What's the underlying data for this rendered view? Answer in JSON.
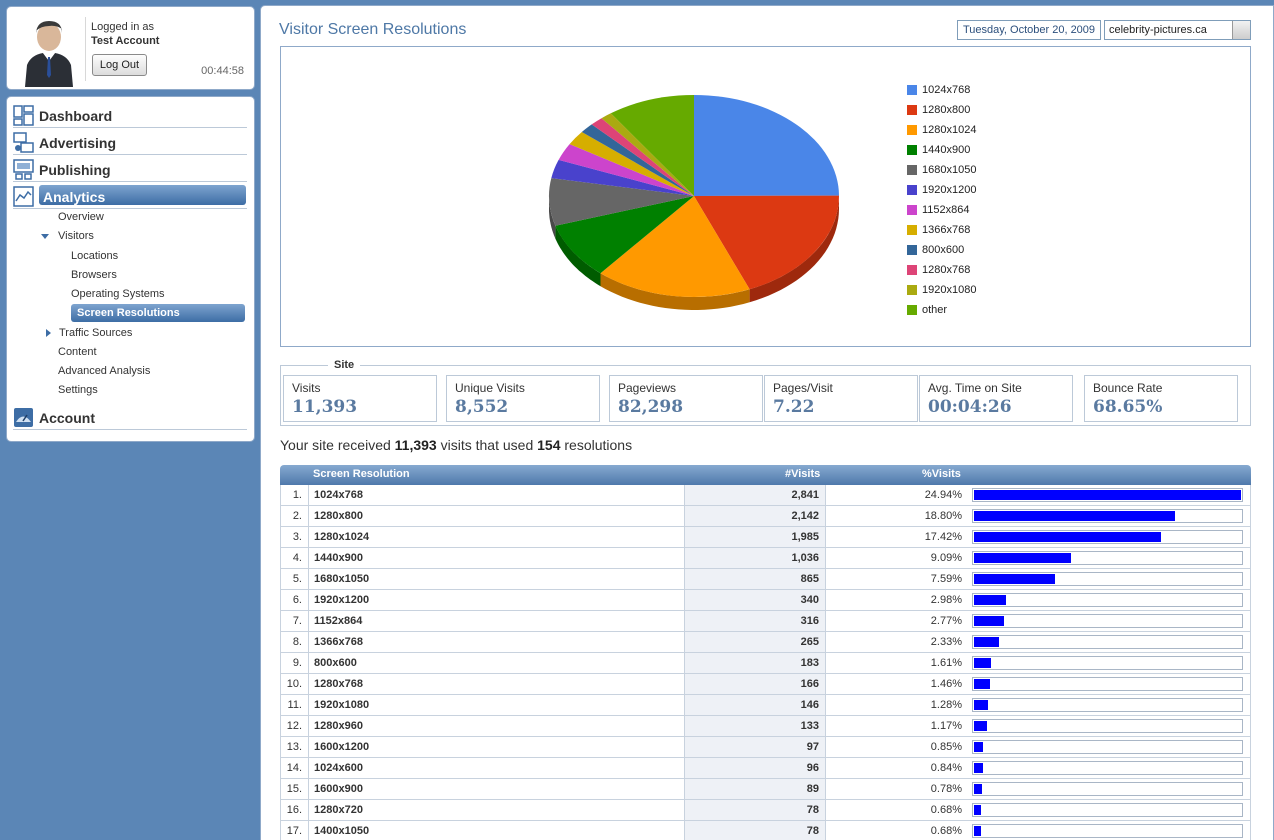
{
  "user": {
    "logged_in_label": "Logged in as",
    "account_name": "Test Account",
    "logout_label": "Log Out",
    "session_time": "00:44:58"
  },
  "nav": {
    "dashboard": "Dashboard",
    "advertising": "Advertising",
    "publishing": "Publishing",
    "analytics": "Analytics",
    "overview": "Overview",
    "visitors": "Visitors",
    "locations": "Locations",
    "browsers": "Browsers",
    "operating_systems": "Operating Systems",
    "screen_resolutions": "Screen Resolutions",
    "traffic_sources": "Traffic Sources",
    "content": "Content",
    "advanced_analysis": "Advanced Analysis",
    "settings": "Settings",
    "account": "Account"
  },
  "header": {
    "title": "Visitor Screen Resolutions",
    "date": "Tuesday, October 20, 2009",
    "site": "celebrity-pictures.ca"
  },
  "chart_data": {
    "type": "pie",
    "title": "",
    "slices": [
      {
        "label": "1024x768",
        "value": 24.94,
        "color": "#4a86e8"
      },
      {
        "label": "1280x800",
        "value": 18.8,
        "color": "#dc3912"
      },
      {
        "label": "1280x1024",
        "value": 17.42,
        "color": "#ff9900"
      },
      {
        "label": "1440x900",
        "value": 9.09,
        "color": "#008000"
      },
      {
        "label": "1680x1050",
        "value": 7.59,
        "color": "#666666"
      },
      {
        "label": "1920x1200",
        "value": 2.98,
        "color": "#4942cc"
      },
      {
        "label": "1152x864",
        "value": 2.77,
        "color": "#cc44cc"
      },
      {
        "label": "1366x768",
        "value": 2.33,
        "color": "#d6ae00"
      },
      {
        "label": "800x600",
        "value": 1.61,
        "color": "#336699"
      },
      {
        "label": "1280x768",
        "value": 1.46,
        "color": "#dd4477"
      },
      {
        "label": "1920x1080",
        "value": 1.28,
        "color": "#aaaa11"
      },
      {
        "label": "other",
        "value": 9.73,
        "color": "#66aa00"
      }
    ],
    "legend_position": "right"
  },
  "site_stats": {
    "section_label": "Site",
    "items": [
      {
        "label": "Visits",
        "value": "11,393"
      },
      {
        "label": "Unique Visits",
        "value": "8,552"
      },
      {
        "label": "Pageviews",
        "value": "82,298"
      },
      {
        "label": "Pages/Visit",
        "value": "7.22"
      },
      {
        "label": "Avg. Time on Site",
        "value": "00:04:26"
      },
      {
        "label": "Bounce Rate",
        "value": "68.65%"
      }
    ]
  },
  "summary": {
    "prefix": "Your site received",
    "visits": "11,393",
    "middle": "visits that used",
    "resolutions": "154",
    "suffix": "resolutions"
  },
  "table": {
    "headers": {
      "resolution": "Screen Resolution",
      "visits": "#Visits",
      "pct": "%Visits"
    },
    "rows": [
      {
        "idx": "1.",
        "res": "1024x768",
        "visits": "2,841",
        "pct": "24.94%",
        "share": 24.94
      },
      {
        "idx": "2.",
        "res": "1280x800",
        "visits": "2,142",
        "pct": "18.80%",
        "share": 18.8
      },
      {
        "idx": "3.",
        "res": "1280x1024",
        "visits": "1,985",
        "pct": "17.42%",
        "share": 17.42
      },
      {
        "idx": "4.",
        "res": "1440x900",
        "visits": "1,036",
        "pct": "9.09%",
        "share": 9.09
      },
      {
        "idx": "5.",
        "res": "1680x1050",
        "visits": "865",
        "pct": "7.59%",
        "share": 7.59
      },
      {
        "idx": "6.",
        "res": "1920x1200",
        "visits": "340",
        "pct": "2.98%",
        "share": 2.98
      },
      {
        "idx": "7.",
        "res": "1152x864",
        "visits": "316",
        "pct": "2.77%",
        "share": 2.77
      },
      {
        "idx": "8.",
        "res": "1366x768",
        "visits": "265",
        "pct": "2.33%",
        "share": 2.33
      },
      {
        "idx": "9.",
        "res": "800x600",
        "visits": "183",
        "pct": "1.61%",
        "share": 1.61
      },
      {
        "idx": "10.",
        "res": "1280x768",
        "visits": "166",
        "pct": "1.46%",
        "share": 1.46
      },
      {
        "idx": "11.",
        "res": "1920x1080",
        "visits": "146",
        "pct": "1.28%",
        "share": 1.28
      },
      {
        "idx": "12.",
        "res": "1280x960",
        "visits": "133",
        "pct": "1.17%",
        "share": 1.17
      },
      {
        "idx": "13.",
        "res": "1600x1200",
        "visits": "97",
        "pct": "0.85%",
        "share": 0.85
      },
      {
        "idx": "14.",
        "res": "1024x600",
        "visits": "96",
        "pct": "0.84%",
        "share": 0.84
      },
      {
        "idx": "15.",
        "res": "1600x900",
        "visits": "89",
        "pct": "0.78%",
        "share": 0.78
      },
      {
        "idx": "16.",
        "res": "1280x720",
        "visits": "78",
        "pct": "0.68%",
        "share": 0.68
      },
      {
        "idx": "17.",
        "res": "1400x1050",
        "visits": "78",
        "pct": "0.68%",
        "share": 0.68
      }
    ]
  }
}
